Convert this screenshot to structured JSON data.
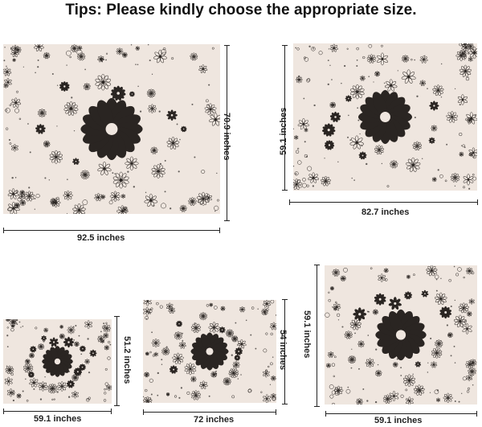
{
  "heading": "Tips: Please kindly choose the appropriate size.",
  "colors": {
    "background": "#efe6df",
    "ink": "#2a2522",
    "text": "#111111"
  },
  "sizes": [
    {
      "name": "large",
      "width_label": "92.5 inches",
      "height_label": "70.9 inches"
    },
    {
      "name": "medium-top",
      "width_label": "82.7 inches",
      "height_label": "59.1 inches"
    },
    {
      "name": "small",
      "width_label": "59.1 inches",
      "height_label": "51.2 inches"
    },
    {
      "name": "medium",
      "width_label": "72 inches",
      "height_label": "54 inches"
    },
    {
      "name": "square",
      "width_label": "59.1 inches",
      "height_label": "59.1 inches"
    }
  ]
}
